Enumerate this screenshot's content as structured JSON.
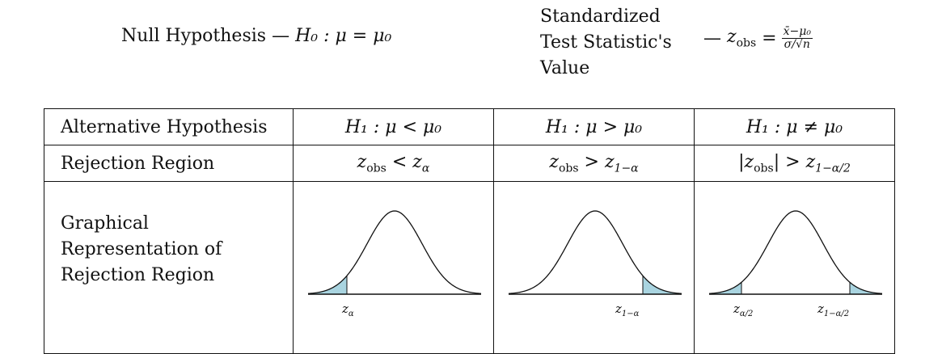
{
  "header": {
    "null_label": "Null Hypothesis —",
    "null_expr": "H₀ : μ = μ₀",
    "stat_label_lines": [
      "Standardized",
      "Test Statistic's",
      "Value"
    ],
    "stat_dash": "—",
    "stat_lhs": "z",
    "stat_lhs_sub": "obs",
    "stat_eq": "=",
    "stat_num": "x̄−μ₀",
    "stat_den": "σ/√n"
  },
  "table": {
    "row_labels": [
      "Alternative Hypothesis",
      "Rejection Region",
      "Graphical",
      "Representation of",
      "Rejection Region"
    ],
    "alternatives": [
      "H₁ : μ < μ₀",
      "H₁ : μ > μ₀",
      "H₁ : μ ≠ μ₀"
    ],
    "regions": [
      {
        "lhs": "z",
        "lhs_sub": "obs",
        "op": "<",
        "rhs": "z",
        "rhs_sub": "α"
      },
      {
        "lhs": "z",
        "lhs_sub": "obs",
        "op": ">",
        "rhs": "z",
        "rhs_sub": "1−α"
      },
      {
        "lhs": "|z",
        "lhs_sub": "obs",
        "lhs_close": "|",
        "op": ">",
        "rhs": "z",
        "rhs_sub": "1−α/2"
      }
    ],
    "graph_labels": {
      "left": {
        "z": "z",
        "sub": "α"
      },
      "right": {
        "z": "z",
        "sub": "1−α"
      },
      "two_left": {
        "z": "z",
        "sub": "α/2"
      },
      "two_right": {
        "z": "z",
        "sub": "1−α/2"
      }
    },
    "shade_color": "#a9d4e0"
  }
}
